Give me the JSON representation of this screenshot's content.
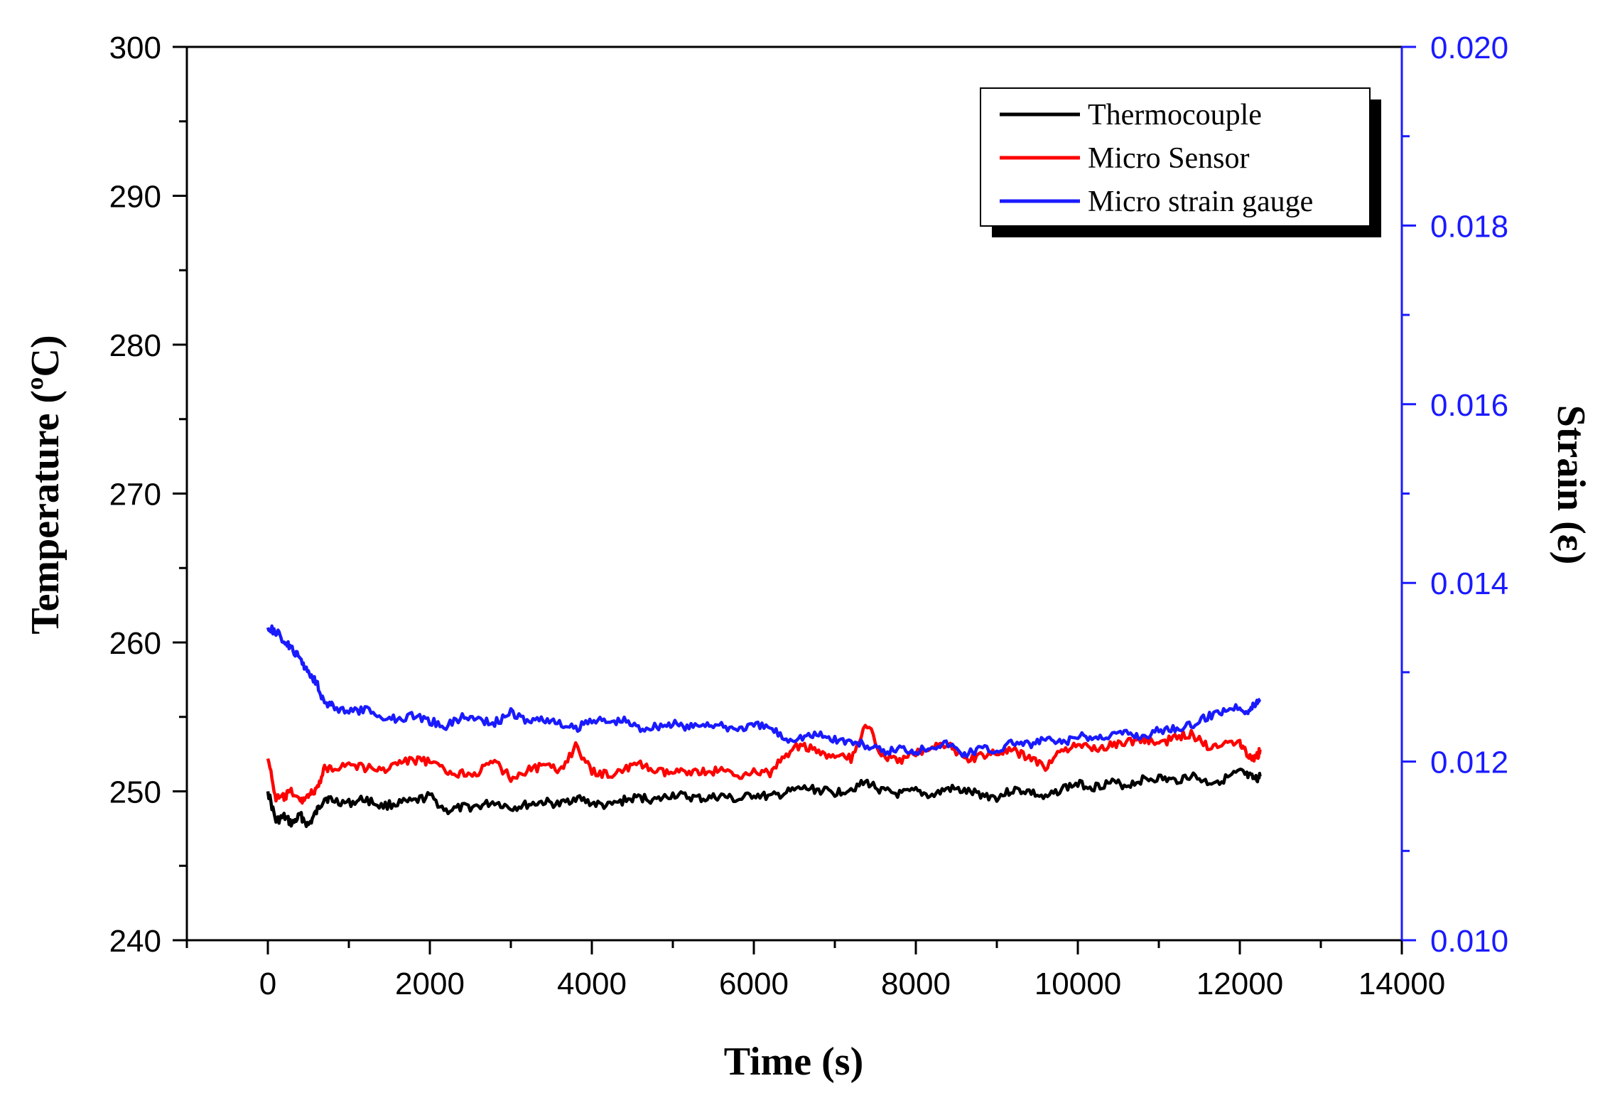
{
  "chart_data": {
    "type": "line",
    "x": {
      "label": "Time (s)",
      "range": [
        -1000,
        14000
      ],
      "ticks": [
        0,
        2000,
        4000,
        6000,
        8000,
        10000,
        12000,
        14000
      ],
      "tick_labels": [
        "0",
        "2000",
        "4000",
        "6000",
        "8000",
        "10000",
        "12000",
        "14000"
      ]
    },
    "y_left": {
      "label": "Temperature (ºC)",
      "range": [
        240,
        300
      ],
      "ticks": [
        240,
        250,
        260,
        270,
        280,
        290,
        300
      ],
      "tick_labels": [
        "240",
        "250",
        "260",
        "270",
        "280",
        "290",
        "300"
      ]
    },
    "y_right": {
      "label": "Strain (ε)",
      "range": [
        0.01,
        0.02
      ],
      "ticks": [
        0.01,
        0.012,
        0.014,
        0.016,
        0.018,
        0.02
      ],
      "tick_labels": [
        "0.010",
        "0.012",
        "0.014",
        "0.016",
        "0.018",
        "0.020"
      ],
      "color": "#1a1aff"
    },
    "series": [
      {
        "name": "Thermocouple",
        "axis": "left",
        "color": "#000000",
        "x": [
          0,
          100,
          200,
          300,
          400,
          500,
          600,
          700,
          800,
          1000,
          1200,
          1400,
          1600,
          1800,
          2000,
          2200,
          2400,
          2600,
          2800,
          3000,
          3200,
          3400,
          3600,
          3800,
          4000,
          4200,
          4400,
          4600,
          4800,
          5000,
          5200,
          5400,
          5600,
          5800,
          6000,
          6200,
          6400,
          6600,
          6800,
          7000,
          7200,
          7400,
          7600,
          7800,
          8000,
          8200,
          8400,
          8600,
          8800,
          9000,
          9200,
          9400,
          9600,
          9800,
          10000,
          10200,
          10400,
          10600,
          10800,
          11000,
          11200,
          11400,
          11600,
          11800,
          12000,
          12100,
          12200,
          12250
        ],
        "values": [
          250.0,
          248.0,
          248.3,
          247.8,
          248.4,
          247.7,
          248.6,
          249.6,
          249.4,
          249.2,
          249.5,
          249.0,
          249.2,
          249.3,
          249.7,
          248.7,
          248.9,
          249.0,
          249.3,
          248.9,
          249.1,
          249.3,
          249.1,
          249.6,
          249.2,
          249.0,
          249.4,
          249.6,
          249.4,
          249.8,
          249.6,
          249.5,
          249.7,
          249.4,
          249.8,
          249.6,
          249.9,
          250.2,
          250.1,
          249.9,
          250.2,
          250.6,
          250.0,
          249.8,
          250.0,
          249.7,
          250.2,
          250.0,
          249.8,
          249.6,
          250.1,
          250.0,
          249.5,
          250.2,
          250.5,
          250.3,
          250.6,
          250.4,
          250.8,
          250.9,
          250.7,
          251.1,
          250.6,
          250.8,
          251.3,
          251.0,
          250.8,
          251.0
        ]
      },
      {
        "name": "Micro Sensor",
        "axis": "left",
        "color": "#ff0000",
        "x": [
          0,
          100,
          200,
          300,
          400,
          500,
          600,
          700,
          800,
          1000,
          1200,
          1400,
          1600,
          1800,
          2000,
          2200,
          2400,
          2600,
          2800,
          3000,
          3200,
          3400,
          3600,
          3800,
          4000,
          4200,
          4400,
          4600,
          4800,
          5000,
          5200,
          5400,
          5600,
          5800,
          6000,
          6200,
          6400,
          6600,
          6800,
          7000,
          7200,
          7400,
          7600,
          7800,
          8000,
          8200,
          8400,
          8600,
          8800,
          9000,
          9200,
          9400,
          9600,
          9800,
          10000,
          10200,
          10400,
          10600,
          10800,
          11000,
          11200,
          11400,
          11600,
          11800,
          12000,
          12100,
          12200,
          12250
        ],
        "values": [
          252.2,
          249.5,
          249.6,
          250.0,
          249.3,
          249.8,
          250.0,
          251.5,
          251.6,
          251.8,
          251.6,
          251.4,
          251.9,
          252.1,
          252.0,
          251.3,
          251.2,
          251.3,
          252.0,
          250.9,
          251.4,
          251.7,
          251.4,
          253.0,
          251.3,
          251.1,
          251.5,
          251.8,
          251.3,
          251.2,
          251.4,
          251.3,
          251.4,
          251.1,
          251.3,
          251.2,
          252.5,
          253.2,
          252.5,
          252.3,
          252.2,
          254.5,
          252.3,
          252.0,
          252.6,
          253.0,
          253.2,
          252.1,
          252.4,
          252.6,
          252.7,
          252.3,
          251.6,
          252.8,
          253.0,
          252.9,
          253.1,
          253.3,
          253.5,
          253.2,
          253.6,
          253.9,
          253.0,
          253.3,
          253.4,
          252.4,
          252.2,
          252.8
        ]
      },
      {
        "name": "Micro strain gauge",
        "axis": "right",
        "color": "#1a1aff",
        "x": [
          0,
          100,
          200,
          300,
          400,
          500,
          600,
          700,
          800,
          1000,
          1200,
          1400,
          1600,
          1800,
          2000,
          2200,
          2400,
          2600,
          2800,
          3000,
          3200,
          3400,
          3600,
          3800,
          4000,
          4200,
          4400,
          4600,
          4800,
          5000,
          5200,
          5400,
          5600,
          5800,
          6000,
          6200,
          6400,
          6600,
          6800,
          7000,
          7200,
          7400,
          7600,
          7800,
          8000,
          8200,
          8400,
          8600,
          8800,
          9000,
          9200,
          9400,
          9600,
          9800,
          10000,
          10200,
          10400,
          10600,
          10800,
          11000,
          11200,
          11400,
          11600,
          11800,
          12000,
          12100,
          12200,
          12250
        ],
        "values": [
          0.0135,
          0.01345,
          0.01335,
          0.01325,
          0.01315,
          0.013,
          0.0129,
          0.01265,
          0.01262,
          0.01255,
          0.01258,
          0.0125,
          0.01248,
          0.01252,
          0.01245,
          0.0124,
          0.0125,
          0.01248,
          0.01243,
          0.01255,
          0.01245,
          0.01248,
          0.01242,
          0.01236,
          0.01248,
          0.01244,
          0.01246,
          0.01237,
          0.0124,
          0.01242,
          0.01238,
          0.01243,
          0.01239,
          0.01237,
          0.0124,
          0.01238,
          0.01225,
          0.01228,
          0.0123,
          0.01225,
          0.01222,
          0.01218,
          0.0121,
          0.01215,
          0.01212,
          0.01218,
          0.0122,
          0.01208,
          0.01215,
          0.01212,
          0.01222,
          0.01218,
          0.01225,
          0.0122,
          0.01228,
          0.01226,
          0.0123,
          0.01232,
          0.01228,
          0.01235,
          0.01238,
          0.0124,
          0.0125,
          0.01258,
          0.01262,
          0.01255,
          0.01266,
          0.0127
        ]
      }
    ],
    "legend": {
      "position": "top-right",
      "entries": [
        "Thermocouple",
        "Micro Sensor",
        "Micro strain gauge"
      ]
    },
    "grid": false
  }
}
